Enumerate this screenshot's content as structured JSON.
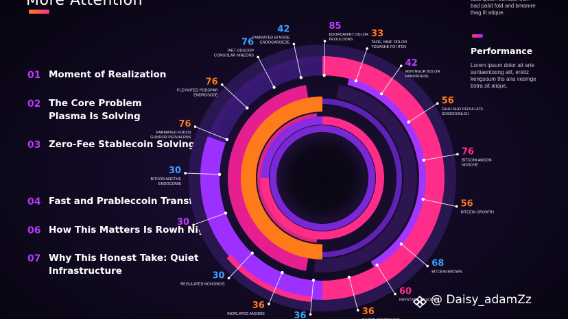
{
  "title": "More Attention",
  "list": [
    {
      "num": "01",
      "label": "Moment of Realization"
    },
    {
      "num": "02",
      "label": "The Core Problem\nPlasma Is Solving"
    },
    {
      "num": "03",
      "label": "Zero-Fee Stablecoin Solving"
    },
    {
      "num": "04",
      "label": "Fast and Prableccoin Transfers"
    },
    {
      "num": "06",
      "label": "How This Matters Is Rowh Nigwi"
    },
    {
      "num": "07",
      "label": "Why This Honest Take: Quiet\nInfrastructure"
    }
  ],
  "right_top_text": "tdaa ipsum suvaacheum\nbad palid fold and bmamre\nthag lit atique.",
  "performance": {
    "title": "Performance",
    "text": "Lorem ipsum dolor alt arte\nsurtiaentoong ailt, ereitz\nkengsoum ths ana vesmge\nbstra sit alique."
  },
  "callouts": [
    {
      "value": "42",
      "label": "PAMMATED BI NODE\nENOOGARDEDE",
      "color": "#3aa0ff",
      "angle": -102
    },
    {
      "value": "85",
      "label": "EDORDANINT ODLOR\nPEOULOONS",
      "color": "#c13cff",
      "angle": -89
    },
    {
      "value": "33",
      "label": "TAOE, NIMF ODLOR\nTOSASHE FOI ITEN",
      "color": "#ff7a1a",
      "angle": -71
    },
    {
      "value": "42",
      "label": "MDIVNGUR BOLOR\nPANDRDEDE",
      "color": "#c13cff",
      "angle": -55
    },
    {
      "value": "76",
      "label": "WET ODGOOP\nCONGOLAR NINEONS",
      "color": "#3aa0ff",
      "angle": -118
    },
    {
      "value": "76",
      "label": "PLEYMITED PODOPAR\nENDROSODE",
      "color": "#ff7a1a",
      "angle": -137
    },
    {
      "value": "56",
      "label": "FAHH NHO PEDULUOS\nSDIOEDONLEH",
      "color": "#ff7a1a",
      "angle": -33
    },
    {
      "value": "76",
      "label": "PARMATED FODOS\nGUNDOR PEPHALRNS",
      "color": "#ff7a1a",
      "angle": -158
    },
    {
      "value": "76",
      "label": "BITCONI ANGON\nNODCHE",
      "color": "#ff2d8a",
      "angle": -10
    },
    {
      "value": "30",
      "label": "BITCON ANCTHE\nENDOCONIE",
      "color": "#3aa0ff",
      "angle": -178
    },
    {
      "value": "56",
      "label": "BITCEIN GROWTH",
      "color": "#ff7a1a",
      "angle": 12
    },
    {
      "value": "30",
      "label": "",
      "color": "#c13cff",
      "angle": 160
    },
    {
      "value": "68",
      "label": "BITCEIN BROWN",
      "color": "#3aa0ff",
      "angle": 40
    },
    {
      "value": "30",
      "label": "REGULATED NCHONIOS",
      "color": "#3aa0ff",
      "angle": 133
    },
    {
      "value": "60",
      "label": "INIVSTNDE BRAOMIN",
      "color": "#ff2d8a",
      "angle": 58
    },
    {
      "value": "36",
      "label": "INORLATED ANOBIIS",
      "color": "#ff7a1a",
      "angle": 113
    },
    {
      "value": "36",
      "label": "SHOCE COMBRAOIS",
      "color": "#ff7a1a",
      "angle": 75
    },
    {
      "value": "36",
      "label": "",
      "color": "#3aa0ff",
      "angle": 95
    }
  ],
  "watermark": "@ Daisy_adamZz"
}
